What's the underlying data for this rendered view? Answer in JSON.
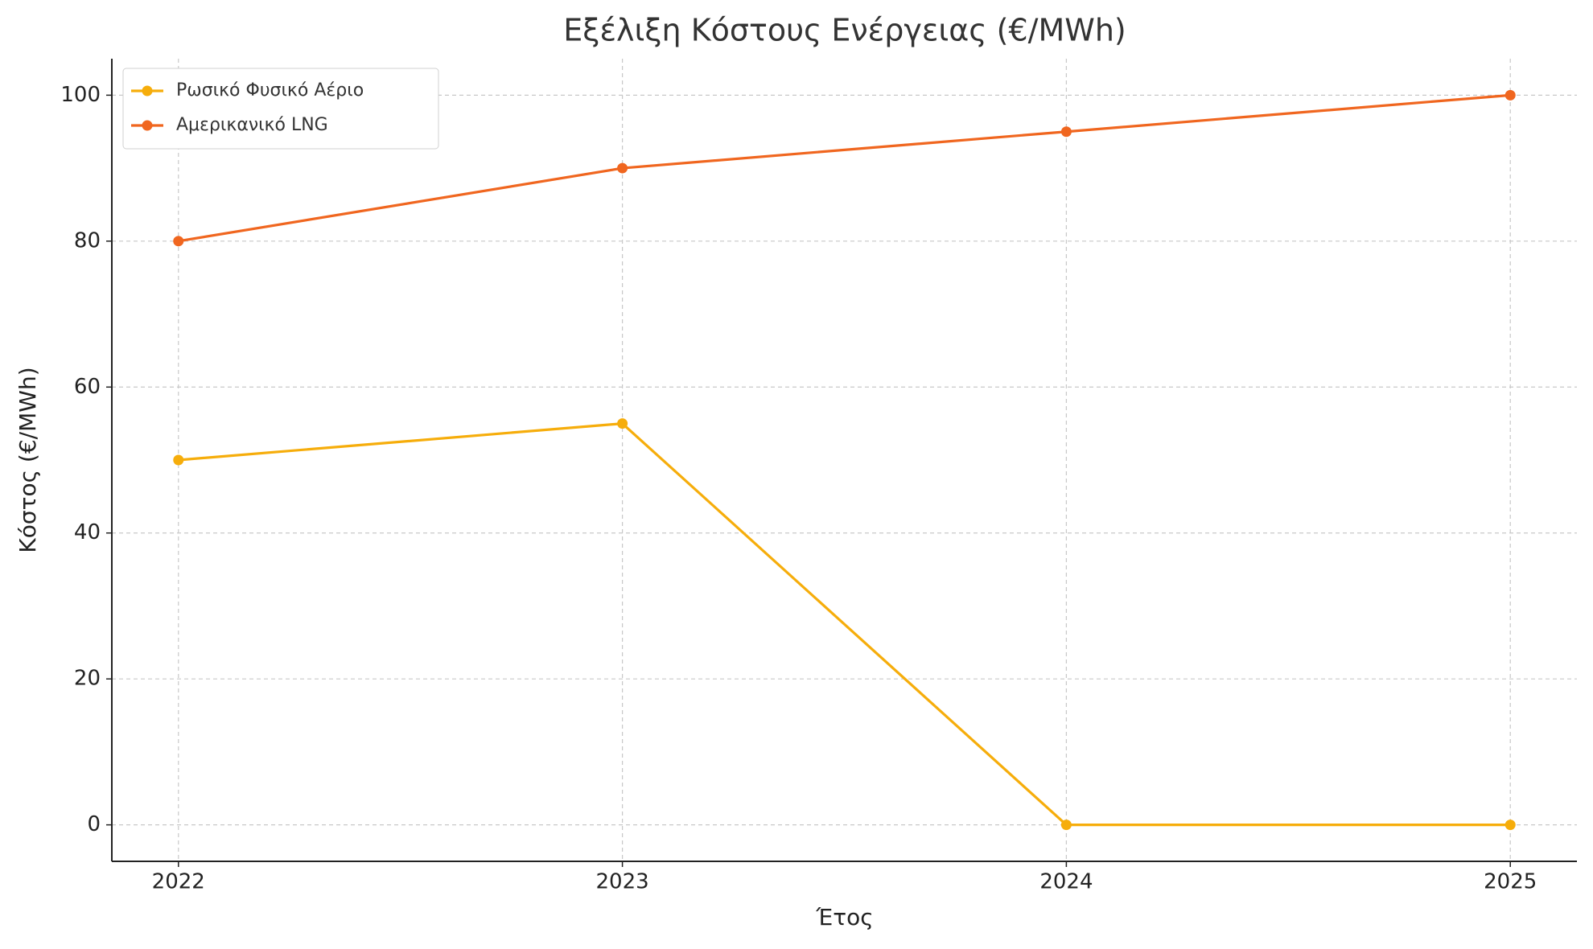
{
  "chart_data": {
    "type": "line",
    "title": "Εξέλιξη Κόστους Ενέργειας (€/MWh)",
    "x_label": "Έτος",
    "y_label": "Κόστος (€/MWh)",
    "x": [
      2022,
      2023,
      2024,
      2025
    ],
    "series": [
      {
        "name": "Ρωσικό Φυσικό Αέριο",
        "color": "#f6ad0b",
        "values": [
          50,
          55,
          0,
          0
        ]
      },
      {
        "name": "Αμερικανικό LNG",
        "color": "#f0661f",
        "values": [
          80,
          90,
          95,
          100
        ]
      }
    ],
    "xlim": [
      2021.85,
      2025.15
    ],
    "xticks": [
      2022,
      2023,
      2024,
      2025
    ],
    "ylim": [
      -5,
      105
    ],
    "yticks": [
      0,
      20,
      40,
      60,
      80,
      100
    ],
    "grid": true,
    "legend": "upper left"
  }
}
